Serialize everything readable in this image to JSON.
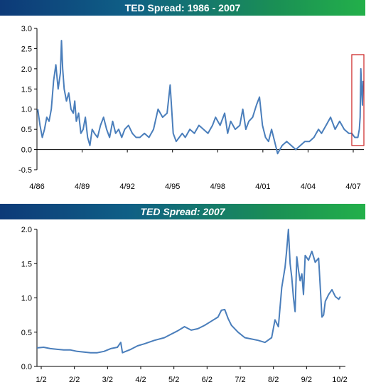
{
  "chart_data": [
    {
      "type": "line",
      "title": "TED Spread: 1986 - 2007",
      "xlabel": "",
      "ylabel": "",
      "ylim": [
        -0.5,
        3.0
      ],
      "yticks": [
        "3.0",
        "2.5",
        "2.0",
        "1.5",
        "1.0",
        "0.5",
        "0.0",
        "-0.5"
      ],
      "xticks": [
        "4/86",
        "4/89",
        "4/92",
        "4/95",
        "4/98",
        "4/01",
        "4/04",
        "4/07"
      ],
      "xlim": [
        1986.2,
        2007.8
      ],
      "highlight": {
        "x_range": [
          2007.0,
          2007.8
        ],
        "y_range": [
          0.1,
          2.35
        ],
        "color": "#cc2222"
      },
      "color": "#4a7ebb",
      "series": [
        {
          "x": [
            1986.25,
            1986.4,
            1986.55,
            1986.7,
            1986.85,
            1987.0,
            1987.15,
            1987.3,
            1987.45,
            1987.6,
            1987.75,
            1987.82,
            1987.9,
            1988.0,
            1988.15,
            1988.3,
            1988.45,
            1988.6,
            1988.7,
            1988.8,
            1988.95,
            1989.1,
            1989.25,
            1989.4,
            1989.55,
            1989.7,
            1989.85,
            1990.0,
            1990.2,
            1990.4,
            1990.6,
            1990.8,
            1991.0,
            1991.2,
            1991.4,
            1991.6,
            1991.8,
            1992.0,
            1992.25,
            1992.5,
            1992.75,
            1993.0,
            1993.3,
            1993.6,
            1993.9,
            1994.2,
            1994.5,
            1994.8,
            1995.0,
            1995.2,
            1995.4,
            1995.6,
            1995.8,
            1996.0,
            1996.3,
            1996.6,
            1996.9,
            1997.2,
            1997.5,
            1997.8,
            1998.0,
            1998.3,
            1998.6,
            1998.8,
            1999.0,
            1999.3,
            1999.6,
            1999.8,
            2000.0,
            2000.2,
            2000.45,
            2000.7,
            2000.9,
            2001.1,
            2001.3,
            2001.5,
            2001.7,
            2001.9,
            2002.1,
            2002.4,
            2002.7,
            2003.0,
            2003.3,
            2003.6,
            2003.9,
            2004.2,
            2004.5,
            2004.8,
            2005.0,
            2005.3,
            2005.6,
            2005.9,
            2006.2,
            2006.5,
            2006.8,
            2007.0,
            2007.2,
            2007.4,
            2007.5,
            2007.55,
            2007.6,
            2007.65,
            2007.7,
            2007.75
          ],
          "values": [
            1.0,
            0.6,
            0.3,
            0.5,
            0.8,
            0.7,
            1.0,
            1.7,
            2.1,
            1.5,
            1.9,
            2.7,
            2.0,
            1.5,
            1.2,
            1.4,
            1.0,
            0.9,
            1.2,
            0.7,
            0.9,
            0.4,
            0.5,
            0.8,
            0.3,
            0.1,
            0.5,
            0.4,
            0.3,
            0.6,
            0.8,
            0.5,
            0.3,
            0.7,
            0.4,
            0.5,
            0.3,
            0.5,
            0.6,
            0.4,
            0.3,
            0.3,
            0.4,
            0.3,
            0.5,
            1.0,
            0.8,
            0.9,
            1.6,
            0.4,
            0.2,
            0.3,
            0.4,
            0.3,
            0.5,
            0.4,
            0.6,
            0.5,
            0.4,
            0.6,
            0.8,
            0.6,
            0.9,
            0.4,
            0.7,
            0.5,
            0.6,
            1.0,
            0.5,
            0.7,
            0.8,
            1.1,
            1.3,
            0.6,
            0.3,
            0.2,
            0.5,
            0.2,
            -0.1,
            0.1,
            0.2,
            0.1,
            0.0,
            0.1,
            0.2,
            0.2,
            0.3,
            0.5,
            0.4,
            0.6,
            0.8,
            0.5,
            0.7,
            0.5,
            0.4,
            0.4,
            0.3,
            0.3,
            0.5,
            0.8,
            2.0,
            1.5,
            1.1,
            1.7
          ]
        }
      ]
    },
    {
      "type": "line",
      "title": "TED Spread: 2007",
      "xlabel": "",
      "ylabel": "",
      "ylim": [
        0.0,
        2.0
      ],
      "yticks": [
        "2.0",
        "1.5",
        "1.0",
        "0.5",
        "0.0"
      ],
      "xticks": [
        "1/2",
        "2/2",
        "3/2",
        "4/2",
        "5/2",
        "6/2",
        "7/2",
        "8/2",
        "9/2",
        "10/2"
      ],
      "xlim": [
        0,
        9.2
      ],
      "color": "#4a7ebb",
      "series": [
        {
          "x": [
            0,
            0.2,
            0.4,
            0.6,
            0.8,
            1.0,
            1.2,
            1.4,
            1.6,
            1.8,
            2.0,
            2.2,
            2.4,
            2.5,
            2.55,
            2.6,
            2.8,
            3.0,
            3.2,
            3.5,
            3.8,
            4.0,
            4.2,
            4.4,
            4.6,
            4.8,
            5.0,
            5.2,
            5.4,
            5.5,
            5.6,
            5.7,
            5.8,
            6.0,
            6.2,
            6.4,
            6.6,
            6.8,
            7.0,
            7.1,
            7.2,
            7.3,
            7.4,
            7.45,
            7.5,
            7.55,
            7.6,
            7.65,
            7.7,
            7.75,
            7.8,
            7.85,
            7.9,
            7.95,
            8.0,
            8.1,
            8.2,
            8.25,
            8.3,
            8.4,
            8.5,
            8.55,
            8.6,
            8.65,
            8.7,
            8.8,
            8.9,
            9.0,
            9.05
          ],
          "values": [
            0.27,
            0.28,
            0.26,
            0.25,
            0.24,
            0.24,
            0.22,
            0.21,
            0.2,
            0.2,
            0.22,
            0.26,
            0.28,
            0.35,
            0.2,
            0.21,
            0.25,
            0.3,
            0.33,
            0.38,
            0.42,
            0.47,
            0.52,
            0.58,
            0.53,
            0.55,
            0.6,
            0.66,
            0.72,
            0.82,
            0.83,
            0.7,
            0.6,
            0.5,
            0.42,
            0.4,
            0.38,
            0.35,
            0.42,
            0.68,
            0.58,
            1.15,
            1.45,
            1.7,
            2.0,
            1.5,
            1.3,
            1.0,
            0.8,
            1.6,
            1.4,
            1.25,
            1.35,
            1.05,
            1.62,
            1.55,
            1.68,
            1.6,
            1.52,
            1.58,
            0.72,
            0.75,
            0.95,
            1.0,
            1.05,
            1.12,
            1.02,
            0.98,
            1.02
          ]
        }
      ]
    }
  ]
}
